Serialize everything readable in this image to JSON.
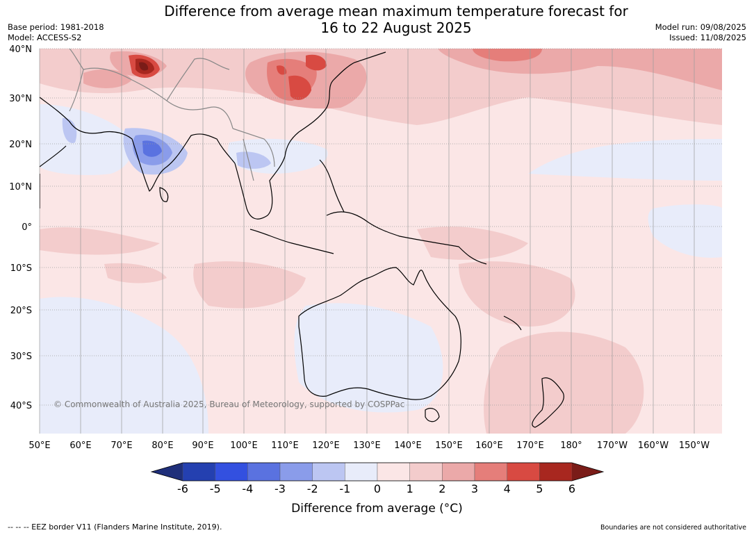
{
  "title": {
    "line1": "Difference from average mean maximum temperature forecast for",
    "line2": "16 to 22 August 2025"
  },
  "meta_left": {
    "base_period": "Base period: 1981-2018",
    "model": "Model: ACCESS-S2"
  },
  "meta_right": {
    "model_run": "Model run: 09/08/2025",
    "issued": "Issued: 11/08/2025"
  },
  "map": {
    "lat_labels": [
      "40°N",
      "30°N",
      "20°N",
      "10°N",
      "0°",
      "10°S",
      "20°S",
      "30°S",
      "40°S"
    ],
    "lon_labels": [
      "50°E",
      "60°E",
      "70°E",
      "80°E",
      "90°E",
      "100°E",
      "110°E",
      "120°E",
      "130°E",
      "140°E",
      "150°E",
      "160°E",
      "170°E",
      "180°",
      "170°W",
      "160°W",
      "150°W"
    ],
    "copyright": "© Commonwealth of Australia 2025, Bureau of Meteorology, supported by COSPPac"
  },
  "colorbar": {
    "label": "Difference from average (°C)",
    "ticks": [
      "-6",
      "-5",
      "-4",
      "-3",
      "-2",
      "-1",
      "0",
      "1",
      "2",
      "3",
      "4",
      "5",
      "6"
    ],
    "colors": [
      "#1f2f7a",
      "#2440b0",
      "#3350e0",
      "#5a72e0",
      "#8a9cea",
      "#bcc6f2",
      "#e8ecfa",
      "#fbe6e6",
      "#f3cccc",
      "#eba9a9",
      "#e57e7a",
      "#d84a42",
      "#a8271f",
      "#7a1c18"
    ]
  },
  "footer": {
    "eez": "--  --  -- EEZ border V11 (Flanders Marine Institute, 2019).",
    "boundaries": "Boundaries are not considered authoritative"
  }
}
